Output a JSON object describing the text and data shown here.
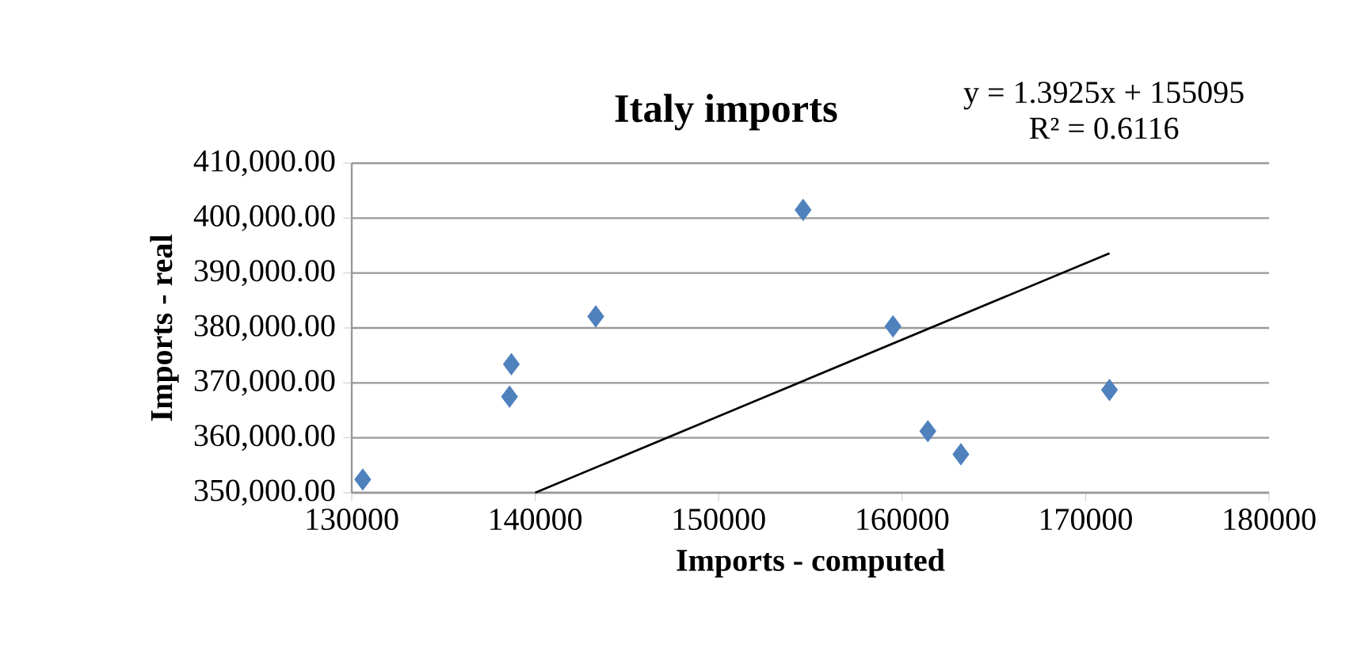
{
  "chart_data": {
    "type": "scatter",
    "title": "Italy imports",
    "xlabel": "Imports - computed",
    "ylabel": "Imports - real",
    "annotations": [
      "y = 1.3925x + 155095",
      "R² = 0.6116"
    ],
    "series": [
      {
        "color": "#4f81bd",
        "marker": "diamond",
        "x": [
          130600,
          138600,
          138700,
          143300,
          154600,
          159500,
          161400,
          163200,
          171300
        ],
        "values": [
          352400,
          367500,
          373400,
          382100,
          401500,
          380300,
          361200,
          357000,
          368700
        ]
      },
      {
        "type": "line",
        "color": "#000000",
        "marker": "none",
        "line_style": "solid",
        "x": [
          140000,
          171300
        ],
        "values": [
          350000,
          393600
        ]
      }
    ],
    "xlim": [
      130000,
      180000
    ],
    "xticks": [
      130000,
      140000,
      150000,
      160000,
      170000,
      180000
    ],
    "ylim": [
      350000,
      410000
    ],
    "yticks": [
      {
        "value": 350000,
        "label": "350,000.00"
      },
      {
        "value": 360000,
        "label": "360,000.00"
      },
      {
        "value": 370000,
        "label": "370,000.00"
      },
      {
        "value": 380000,
        "label": "380,000.00"
      },
      {
        "value": 390000,
        "label": "390,000.00"
      },
      {
        "value": 400000,
        "label": "400,000.00"
      },
      {
        "value": 410000,
        "label": "410,000.00"
      }
    ],
    "grid": "y"
  }
}
